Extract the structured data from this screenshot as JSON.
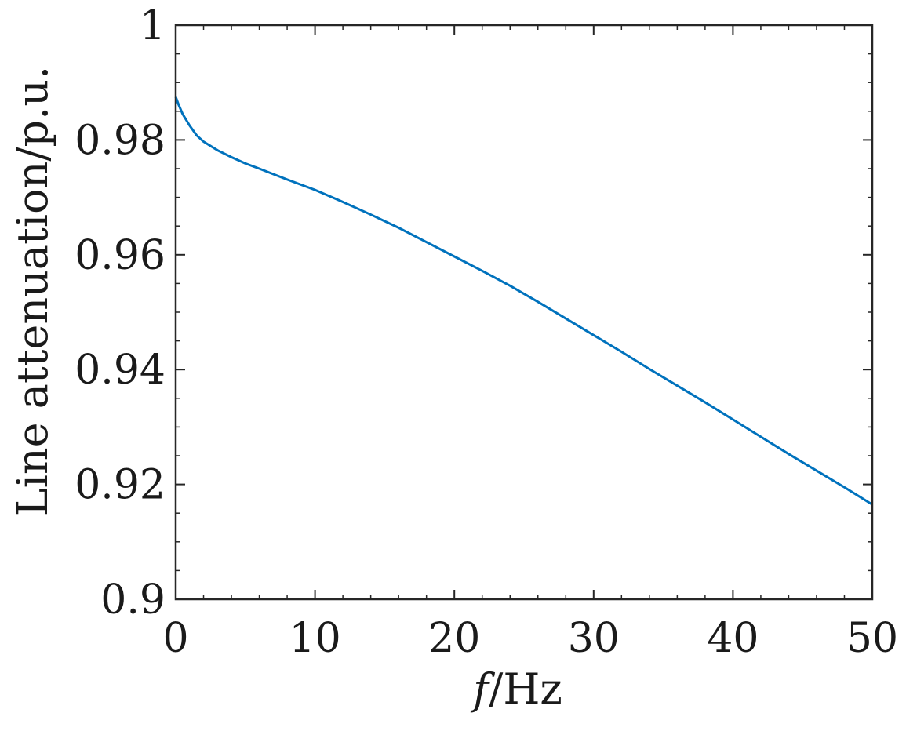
{
  "chart_data": {
    "type": "line",
    "title": "",
    "xlabel_italic": "f",
    "xlabel_rest": "/Hz",
    "ylabel": "Line attenuation/p.u.",
    "xlim": [
      0,
      50
    ],
    "ylim": [
      0.9,
      1.0
    ],
    "xticks": [
      0,
      10,
      20,
      30,
      40,
      50
    ],
    "xtick_labels": [
      "0",
      "10",
      "20",
      "30",
      "40",
      "50"
    ],
    "yticks": [
      0.9,
      0.92,
      0.94,
      0.96,
      0.98,
      1.0
    ],
    "ytick_labels": [
      "0.9",
      "0.92",
      "0.94",
      "0.96",
      "0.98",
      "1"
    ],
    "x_minor_step": 2,
    "y_minor_step": 0.005,
    "grid": false,
    "line_color": "#0072BD",
    "series": [
      {
        "x": [
          0,
          0.2,
          0.5,
          1,
          1.5,
          2,
          3,
          4,
          5,
          6,
          8,
          10,
          12,
          14,
          16,
          18,
          20,
          22,
          24,
          26,
          28,
          30,
          32,
          34,
          36,
          38,
          40,
          42,
          44,
          46,
          48,
          50
        ],
        "y": [
          0.9875,
          0.9862,
          0.9845,
          0.9825,
          0.9808,
          0.9797,
          0.9782,
          0.977,
          0.9759,
          0.975,
          0.9731,
          0.9713,
          0.9692,
          0.967,
          0.9647,
          0.9622,
          0.9597,
          0.9572,
          0.9546,
          0.9518,
          0.9489,
          0.946,
          0.9431,
          0.9401,
          0.9372,
          0.9343,
          0.9313,
          0.9283,
          0.9253,
          0.9224,
          0.9195,
          0.9165
        ]
      }
    ]
  }
}
